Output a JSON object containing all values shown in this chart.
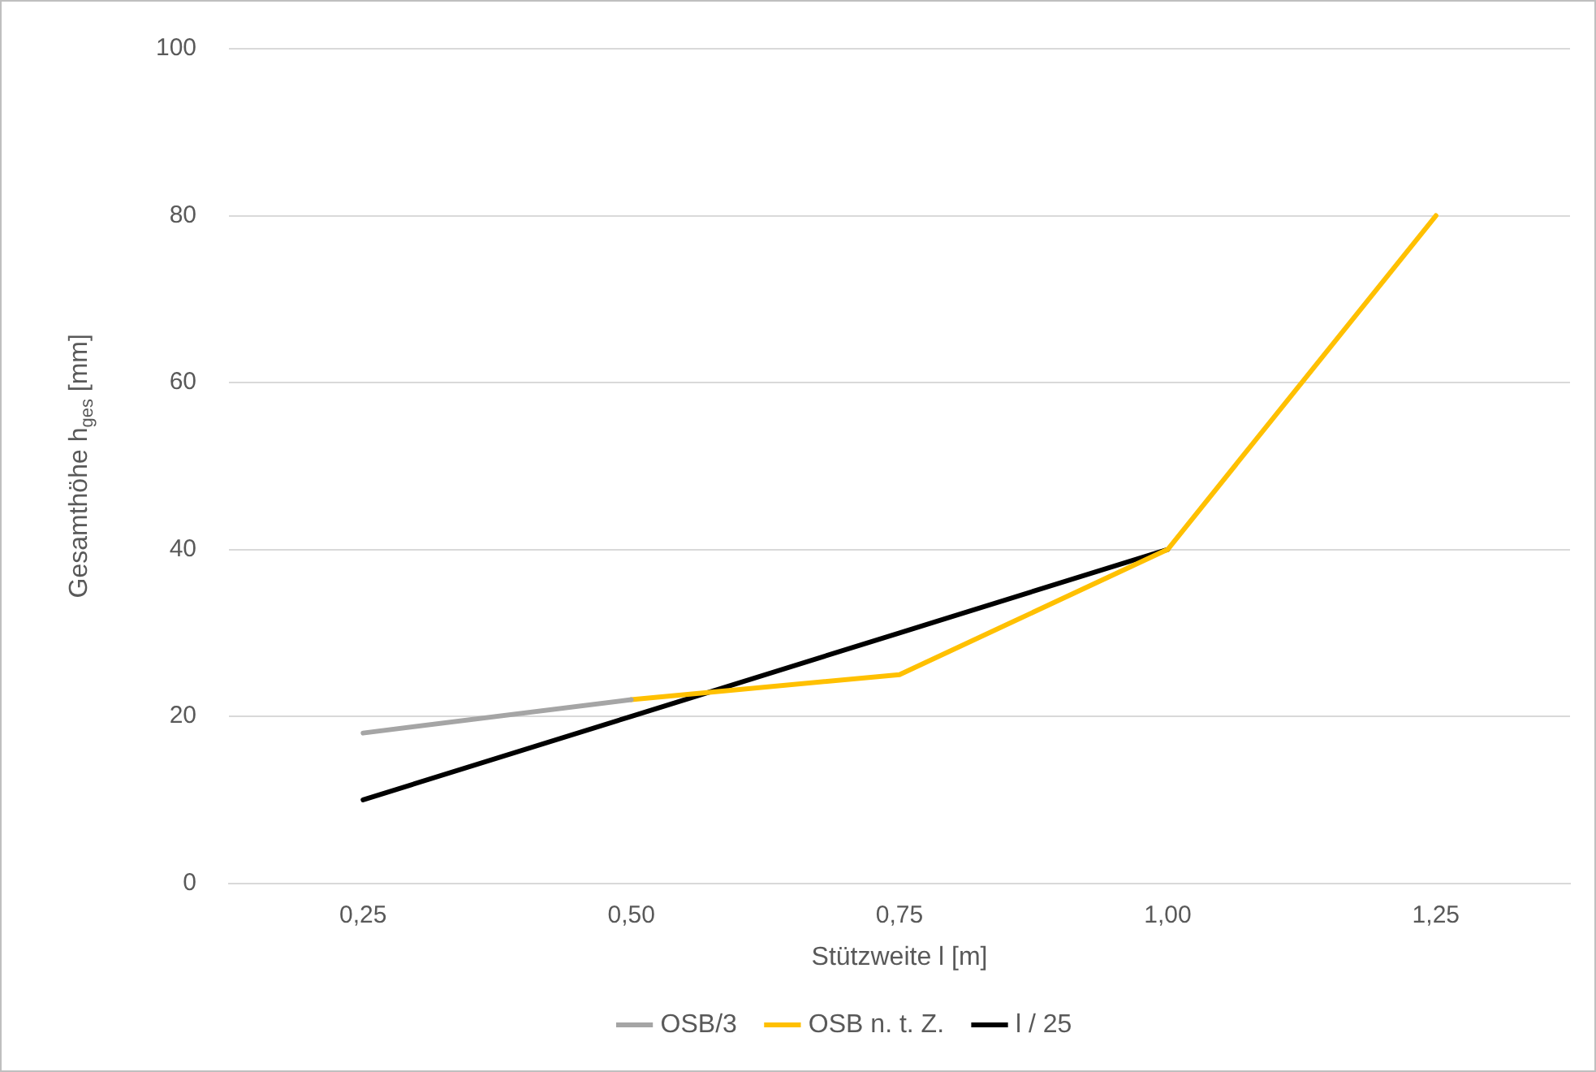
{
  "chart_data": {
    "type": "line",
    "xlabel": "Stützweite l [m]",
    "ylabel": "Gesamthöhe h$_{ges}$ [mm]",
    "categories": [
      "0,25",
      "0,50",
      "0,75",
      "1,00",
      "1,25"
    ],
    "series": [
      {
        "name": "OSB/3",
        "color": "#a5a5a5",
        "values": [
          18,
          22,
          null,
          null,
          null
        ]
      },
      {
        "name": "OSB n. t. Z.",
        "color": "#ffc000",
        "values": [
          null,
          22,
          25,
          40,
          80
        ]
      },
      {
        "name": "l / 25",
        "color": "#000000",
        "values": [
          10,
          20,
          30,
          40,
          null
        ]
      }
    ],
    "ylim": [
      0,
      100
    ],
    "yticks": [
      0,
      20,
      40,
      60,
      80,
      100
    ],
    "grid": "y",
    "legend": "bottom",
    "marker": "none",
    "line_style": "solid"
  }
}
